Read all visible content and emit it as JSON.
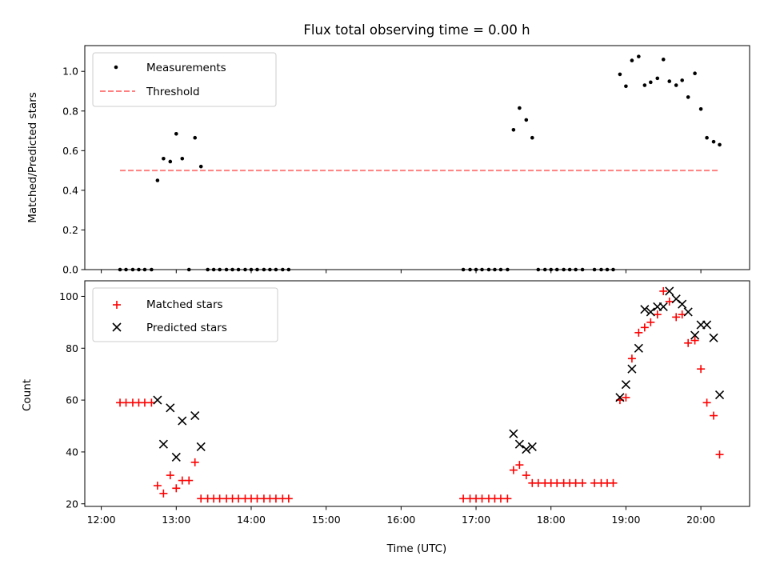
{
  "chart_data": [
    {
      "type": "scatter",
      "title": "Flux total observing time = 0.00 h",
      "xlabel": "",
      "ylabel": "Matched/Predicted stars",
      "xlim": [
        11.78,
        20.65
      ],
      "ylim": [
        0.0,
        1.13
      ],
      "yticks": [
        0.0,
        0.2,
        0.4,
        0.6,
        0.8,
        1.0
      ],
      "ytick_labels": [
        "0.0",
        "0.2",
        "0.4",
        "0.6",
        "0.8",
        "1.0"
      ],
      "legend": {
        "position": "upper-left",
        "entries": [
          "Measurements",
          "Threshold"
        ]
      },
      "series": [
        {
          "name": "Measurements",
          "marker": "dot",
          "color": "#000000",
          "x": [
            12.25,
            12.33,
            12.42,
            12.5,
            12.58,
            12.67,
            12.75,
            12.83,
            12.92,
            13.0,
            13.08,
            13.17,
            13.25,
            13.33,
            13.42,
            13.5,
            13.58,
            13.67,
            13.75,
            13.83,
            13.92,
            14.0,
            14.08,
            14.17,
            14.25,
            14.33,
            14.42,
            14.5,
            16.83,
            16.92,
            17.0,
            17.08,
            17.17,
            17.25,
            17.33,
            17.42,
            17.5,
            17.58,
            17.67,
            17.75,
            17.83,
            17.92,
            18.0,
            18.08,
            18.17,
            18.25,
            18.33,
            18.42,
            18.58,
            18.67,
            18.75,
            18.83,
            18.92,
            19.0,
            19.08,
            19.17,
            19.25,
            19.33,
            19.42,
            19.5,
            19.58,
            19.67,
            19.75,
            19.83,
            19.92,
            20.0,
            20.08,
            20.17,
            20.25
          ],
          "y": [
            0.0,
            0.0,
            0.0,
            0.0,
            0.0,
            0.0,
            0.45,
            0.56,
            0.545,
            0.685,
            0.56,
            0.0,
            0.665,
            0.52,
            0.0,
            0.0,
            0.0,
            0.0,
            0.0,
            0.0,
            0.0,
            0.0,
            0.0,
            0.0,
            0.0,
            0.0,
            0.0,
            0.0,
            0.0,
            0.0,
            0.0,
            0.0,
            0.0,
            0.0,
            0.0,
            0.0,
            0.705,
            0.815,
            0.755,
            0.665,
            0.0,
            0.0,
            0.0,
            0.0,
            0.0,
            0.0,
            0.0,
            0.0,
            0.0,
            0.0,
            0.0,
            0.0,
            0.985,
            0.925,
            1.055,
            1.075,
            0.93,
            0.945,
            0.965,
            1.06,
            0.95,
            0.93,
            0.955,
            0.87,
            0.99,
            0.81,
            0.665,
            0.645,
            0.63
          ]
        },
        {
          "name": "Threshold",
          "style": "dashed",
          "color": "#ff8080",
          "x": [
            12.25,
            20.25
          ],
          "y": [
            0.5,
            0.5
          ]
        }
      ]
    },
    {
      "type": "scatter",
      "title": "",
      "xlabel": "Time (UTC)",
      "ylabel": "Count",
      "xlim": [
        11.78,
        20.65
      ],
      "ylim": [
        19.0,
        106.0
      ],
      "xticks": [
        12,
        13,
        14,
        15,
        16,
        17,
        18,
        19,
        20
      ],
      "xtick_labels": [
        "12:00",
        "13:00",
        "14:00",
        "15:00",
        "16:00",
        "17:00",
        "18:00",
        "19:00",
        "20:00"
      ],
      "yticks": [
        20,
        40,
        60,
        80,
        100
      ],
      "ytick_labels": [
        "20",
        "40",
        "60",
        "80",
        "100"
      ],
      "legend": {
        "position": "upper-left",
        "entries": [
          "Matched stars",
          "Predicted stars"
        ]
      },
      "series": [
        {
          "name": "Matched stars",
          "marker": "plus",
          "color": "#ff0000",
          "x": [
            12.25,
            12.33,
            12.42,
            12.5,
            12.58,
            12.67,
            12.75,
            12.83,
            12.92,
            13.0,
            13.08,
            13.17,
            13.25,
            13.33,
            13.42,
            13.5,
            13.58,
            13.67,
            13.75,
            13.83,
            13.92,
            14.0,
            14.08,
            14.17,
            14.25,
            14.33,
            14.42,
            14.5,
            16.83,
            16.92,
            17.0,
            17.08,
            17.17,
            17.25,
            17.33,
            17.42,
            17.5,
            17.58,
            17.67,
            17.75,
            17.83,
            17.92,
            18.0,
            18.08,
            18.17,
            18.25,
            18.33,
            18.42,
            18.58,
            18.67,
            18.75,
            18.83,
            18.92,
            19.0,
            19.08,
            19.17,
            19.25,
            19.33,
            19.42,
            19.5,
            19.58,
            19.67,
            19.75,
            19.83,
            19.92,
            20.0,
            20.08,
            20.17,
            20.25
          ],
          "y": [
            59,
            59,
            59,
            59,
            59,
            59,
            27,
            24,
            31,
            26,
            29,
            29,
            36,
            22,
            22,
            22,
            22,
            22,
            22,
            22,
            22,
            22,
            22,
            22,
            22,
            22,
            22,
            22,
            22,
            22,
            22,
            22,
            22,
            22,
            22,
            22,
            33,
            35,
            31,
            28,
            28,
            28,
            28,
            28,
            28,
            28,
            28,
            28,
            28,
            28,
            28,
            28,
            60,
            61,
            76,
            86,
            88,
            90,
            93,
            102,
            98,
            92,
            93,
            82,
            83,
            72,
            59,
            54,
            39
          ]
        },
        {
          "name": "Predicted stars",
          "marker": "x",
          "color": "#000000",
          "x": [
            12.75,
            12.83,
            12.92,
            13.0,
            13.08,
            13.25,
            13.33,
            17.5,
            17.58,
            17.67,
            17.75,
            18.92,
            19.0,
            19.08,
            19.17,
            19.25,
            19.33,
            19.42,
            19.5,
            19.58,
            19.67,
            19.75,
            19.83,
            19.92,
            20.0,
            20.08,
            20.17,
            20.25
          ],
          "y": [
            60,
            43,
            57,
            38,
            52,
            54,
            42,
            47,
            43,
            41,
            42,
            61,
            66,
            72,
            80,
            95,
            94,
            96,
            96,
            102,
            99,
            97,
            94,
            85,
            89,
            89,
            84,
            62
          ]
        }
      ]
    }
  ]
}
